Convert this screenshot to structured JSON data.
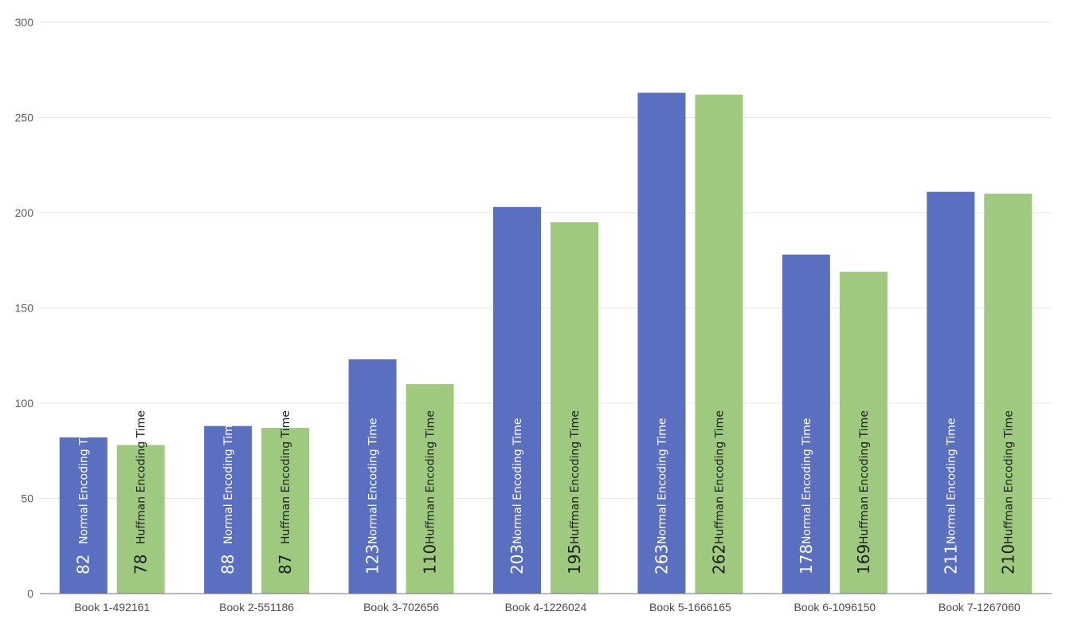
{
  "chart_data": {
    "type": "bar",
    "title": "",
    "xlabel": "",
    "ylabel": "",
    "categories": [
      "Book 1-492161",
      "Book 2-551186",
      "Book 3-702656",
      "Book 4-1226024",
      "Book 5-1666165",
      "Book 6-1096150",
      "Book 7-1267060"
    ],
    "series": [
      {
        "name": "Normal Encoding Time",
        "color": "#5a6fc0",
        "values": [
          82,
          88,
          123,
          203,
          263,
          178,
          211
        ]
      },
      {
        "name": "Huffman Encoding Time",
        "color": "#9ec97f",
        "values": [
          78,
          87,
          110,
          195,
          262,
          169,
          210
        ]
      }
    ],
    "ylim": [
      0,
      300
    ],
    "yticks": [
      0,
      50,
      100,
      150,
      200,
      250,
      300
    ],
    "grid": true,
    "legend": "none",
    "data_labels": "inside-bar-rotated"
  }
}
